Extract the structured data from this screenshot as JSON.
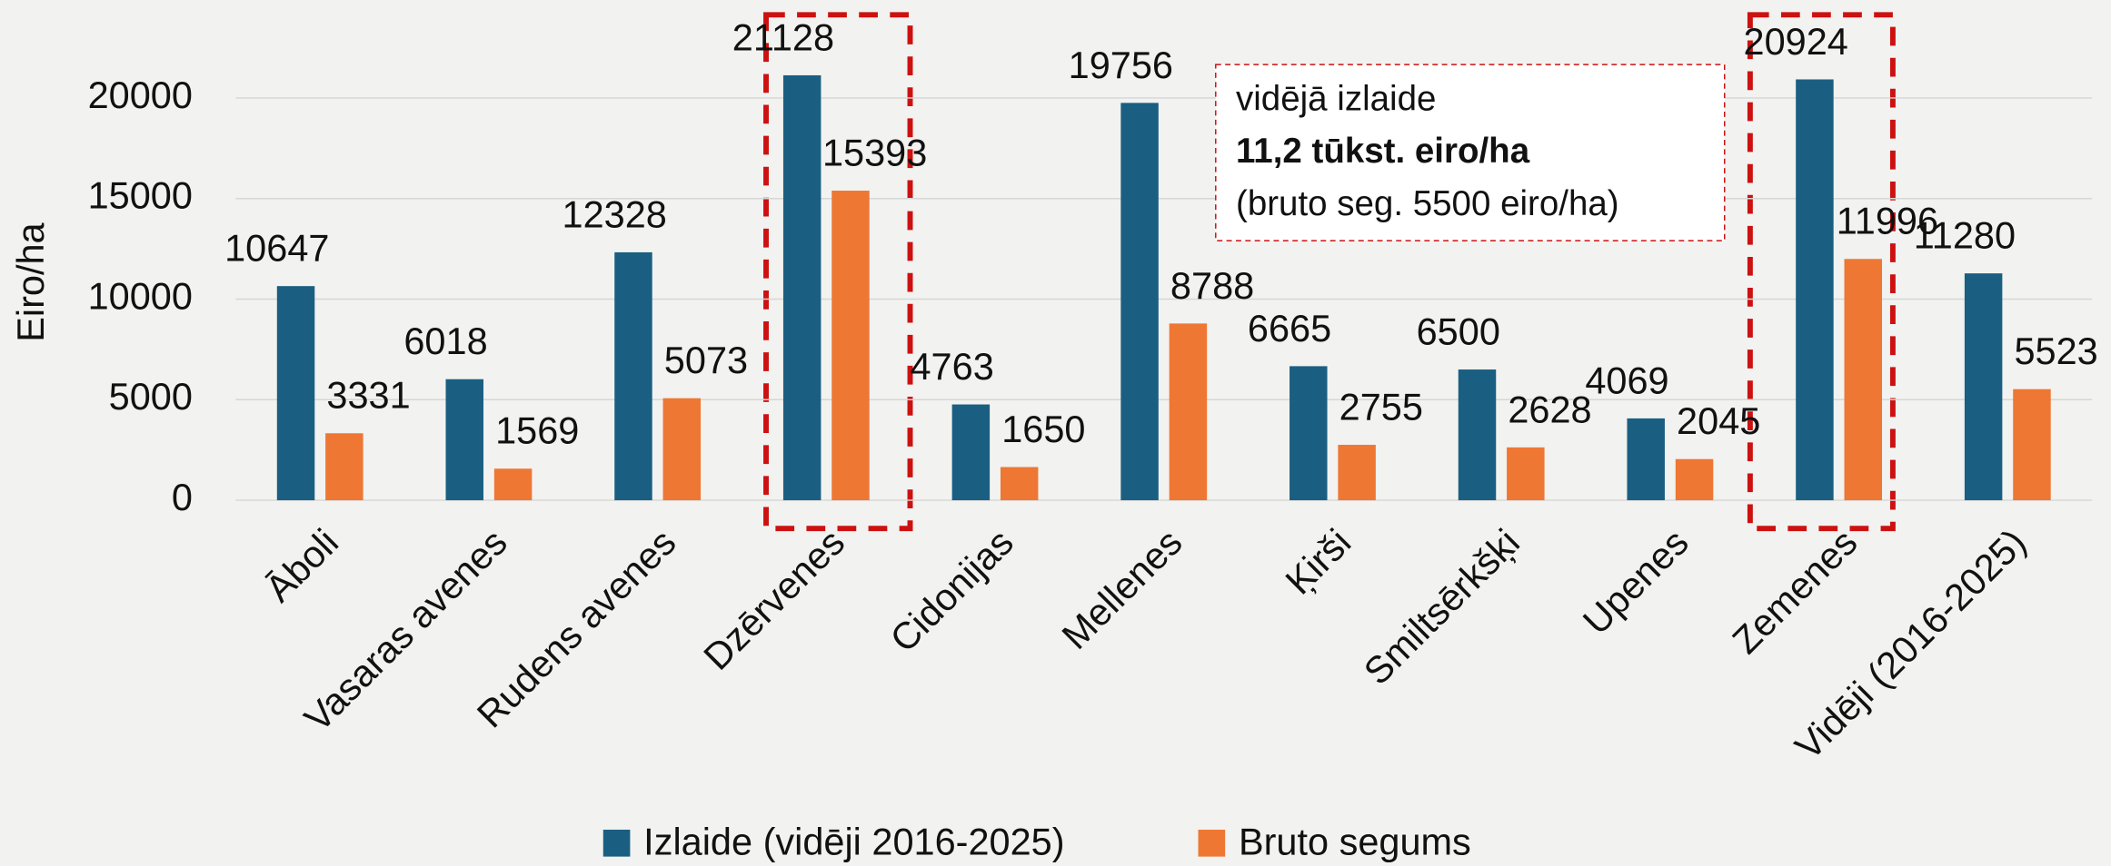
{
  "chart_data": {
    "type": "bar",
    "y_axis_label": "Eiro/ha",
    "categories": [
      "Āboli",
      "Vasaras avenes",
      "Rudens avenes",
      "Dzērvenes",
      "Cidonijas",
      "Mellenes",
      "Ķirši",
      "Smiltsērkšķi",
      "Upenes",
      "Zemenes",
      "Vidēji (2016-2025)"
    ],
    "series": [
      {
        "name": "Izlaide (vidēji 2016-2025)",
        "color": "#1a5f82",
        "values": [
          10647,
          6018,
          12328,
          21128,
          4763,
          19756,
          6665,
          6500,
          4069,
          20924,
          11280
        ]
      },
      {
        "name": "Bruto segums",
        "color": "#ee7733",
        "values": [
          3331,
          1569,
          5073,
          15393,
          1650,
          8788,
          2755,
          2628,
          2045,
          11996,
          5523
        ]
      }
    ],
    "ylim": [
      0,
      23000
    ],
    "yticks": [
      0,
      5000,
      10000,
      15000,
      20000
    ],
    "grid": true,
    "legend": "bottom",
    "annotation": [
      "vidējā izlaide",
      "11,2 tūkst. eiro/ha",
      "(bruto seg. 5500 eiro/ha)"
    ]
  }
}
